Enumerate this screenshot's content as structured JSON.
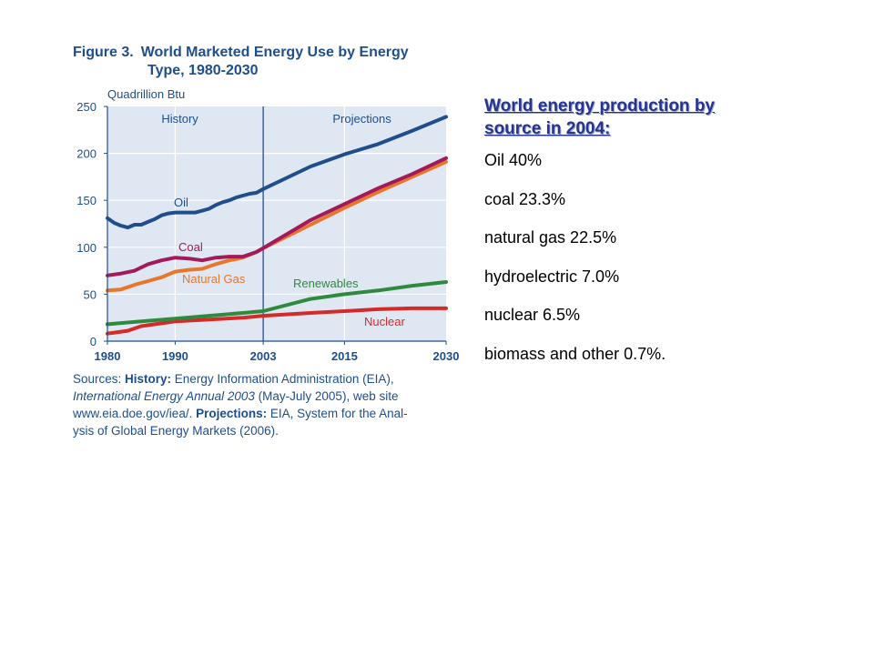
{
  "figure": {
    "number": "Figure 3.",
    "title_line1": "World Marketed Energy Use by Energy",
    "title_line2": "Type, 1980-2030"
  },
  "chart_data": {
    "type": "line",
    "ylabel": "Quadrillion Btu",
    "xlabel": "",
    "ylim": [
      0,
      250
    ],
    "xlim": [
      1980,
      2030
    ],
    "yticks": [
      "0",
      "50",
      "100",
      "150",
      "200",
      "250"
    ],
    "xticks": [
      "1980",
      "1990",
      "2003",
      "2015",
      "2030"
    ],
    "grid": true,
    "regions": [
      {
        "label": "History",
        "from": 1980,
        "to": 2003
      },
      {
        "label": "Projections",
        "from": 2003,
        "to": 2030
      }
    ],
    "series": [
      {
        "name": "Oil",
        "color": "#1f4e8c",
        "points": [
          [
            1980,
            131
          ],
          [
            1981,
            126
          ],
          [
            1982,
            123
          ],
          [
            1983,
            121
          ],
          [
            1984,
            124
          ],
          [
            1985,
            124
          ],
          [
            1986,
            127
          ],
          [
            1987,
            130
          ],
          [
            1988,
            134
          ],
          [
            1989,
            136
          ],
          [
            1990,
            137
          ],
          [
            1991,
            137
          ],
          [
            1992,
            137
          ],
          [
            1993,
            137
          ],
          [
            1994,
            139
          ],
          [
            1995,
            141
          ],
          [
            1996,
            145
          ],
          [
            1997,
            148
          ],
          [
            1998,
            150
          ],
          [
            1999,
            153
          ],
          [
            2000,
            155
          ],
          [
            2001,
            157
          ],
          [
            2002,
            158
          ],
          [
            2003,
            162
          ],
          [
            2010,
            186
          ],
          [
            2015,
            199
          ],
          [
            2020,
            210
          ],
          [
            2025,
            224
          ],
          [
            2030,
            239
          ]
        ]
      },
      {
        "name": "Coal",
        "color": "#a3195b",
        "points": [
          [
            1980,
            70
          ],
          [
            1982,
            72
          ],
          [
            1984,
            75
          ],
          [
            1986,
            82
          ],
          [
            1988,
            86
          ],
          [
            1990,
            89
          ],
          [
            1992,
            88
          ],
          [
            1994,
            86
          ],
          [
            1996,
            89
          ],
          [
            1998,
            90
          ],
          [
            2000,
            90
          ],
          [
            2002,
            95
          ],
          [
            2003,
            99
          ],
          [
            2010,
            129
          ],
          [
            2015,
            146
          ],
          [
            2020,
            163
          ],
          [
            2025,
            178
          ],
          [
            2030,
            195
          ]
        ]
      },
      {
        "name": "Natural Gas",
        "color": "#e8762b",
        "points": [
          [
            1980,
            54
          ],
          [
            1982,
            55
          ],
          [
            1984,
            60
          ],
          [
            1986,
            64
          ],
          [
            1988,
            68
          ],
          [
            1990,
            74
          ],
          [
            1992,
            76
          ],
          [
            1994,
            77
          ],
          [
            1996,
            82
          ],
          [
            1998,
            86
          ],
          [
            2000,
            89
          ],
          [
            2002,
            95
          ],
          [
            2003,
            99
          ],
          [
            2010,
            124
          ],
          [
            2015,
            142
          ],
          [
            2020,
            159
          ],
          [
            2025,
            175
          ],
          [
            2030,
            191
          ]
        ]
      },
      {
        "name": "Renewables",
        "color": "#2e8b3e",
        "points": [
          [
            1980,
            18
          ],
          [
            1985,
            21
          ],
          [
            1990,
            24
          ],
          [
            1995,
            27
          ],
          [
            2000,
            30
          ],
          [
            2003,
            32
          ],
          [
            2010,
            45
          ],
          [
            2015,
            50
          ],
          [
            2020,
            54
          ],
          [
            2025,
            59
          ],
          [
            2030,
            63
          ]
        ]
      },
      {
        "name": "Nuclear",
        "color": "#d42a2a",
        "points": [
          [
            1980,
            8
          ],
          [
            1983,
            11
          ],
          [
            1985,
            16
          ],
          [
            1988,
            19
          ],
          [
            1990,
            21
          ],
          [
            1995,
            23
          ],
          [
            2000,
            25
          ],
          [
            2003,
            27
          ],
          [
            2010,
            30
          ],
          [
            2015,
            32
          ],
          [
            2020,
            34
          ],
          [
            2025,
            35
          ],
          [
            2030,
            35
          ]
        ]
      }
    ]
  },
  "sources": {
    "label": "Sources: ",
    "history_label": "History:",
    "history_text1": " Energy Information Administration (EIA),",
    "history_italic": "International Energy Annual 2003",
    "history_text2": " (May-July 2005), web site",
    "history_text3": "www.eia.doe.gov/iea/. ",
    "projections_label": "Projections:",
    "projections_text1": " EIA, System for the Anal-",
    "projections_text2": "ysis of Global Energy Markets (2006)."
  },
  "side": {
    "heading_line1": "World energy production by",
    "heading_line2": "source in 2004:",
    "items": [
      "Oil 40%",
      "coal 23.3%",
      "natural gas 22.5%",
      "hydroelectric 7.0%",
      "nuclear 6.5%",
      "biomass and other 0.7%."
    ]
  }
}
